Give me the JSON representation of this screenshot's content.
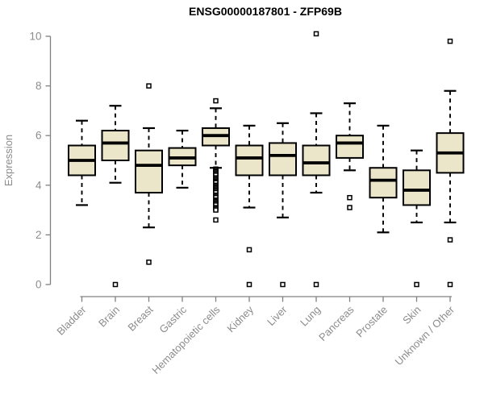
{
  "title": "ENSG00000187801 - ZFP69B",
  "chart_data": {
    "type": "boxplot",
    "title": "ENSG00000187801 - ZFP69B",
    "xlabel": "",
    "ylabel": "Expression",
    "ylim": [
      0,
      10
    ],
    "yticks": [
      0,
      2,
      4,
      6,
      8,
      10
    ],
    "grid": false,
    "legend": null,
    "colors": {
      "box_fill": "#EBE6CA",
      "box_stroke": "#000000",
      "median_stroke": "#000000",
      "whisker_stroke": "#000000",
      "outlier_stroke": "#000000",
      "axis_line": "#808080",
      "axis_text": "#8c8c8c",
      "title_text": "#000000",
      "background": "#ffffff"
    },
    "categories": [
      "Bladder",
      "Brain",
      "Breast",
      "Gastric",
      "Hematopoietic cells",
      "Kidney",
      "Liver",
      "Lung",
      "Pancreas",
      "Prostate",
      "Skin",
      "Unknown / Other"
    ],
    "series": [
      {
        "category": "Bladder",
        "whisker_low": 3.2,
        "q1": 4.4,
        "median": 5.0,
        "q3": 5.6,
        "whisker_high": 6.6,
        "outliers": []
      },
      {
        "category": "Brain",
        "whisker_low": 4.1,
        "q1": 5.0,
        "median": 5.7,
        "q3": 6.2,
        "whisker_high": 7.2,
        "outliers": [
          0
        ]
      },
      {
        "category": "Breast",
        "whisker_low": 2.3,
        "q1": 3.7,
        "median": 4.8,
        "q3": 5.4,
        "whisker_high": 6.3,
        "outliers": [
          8.0,
          0.9
        ]
      },
      {
        "category": "Gastric",
        "whisker_low": 3.9,
        "q1": 4.8,
        "median": 5.1,
        "q3": 5.5,
        "whisker_high": 6.2,
        "outliers": []
      },
      {
        "category": "Hematopoietic cells",
        "whisker_low": 4.7,
        "q1": 5.6,
        "median": 6.0,
        "q3": 6.3,
        "whisker_high": 7.1,
        "outliers": [
          7.4,
          4.65,
          4.6,
          4.55,
          4.5,
          4.45,
          4.4,
          4.3,
          4.25,
          4.2,
          4.15,
          4.1,
          4.0,
          3.95,
          3.9,
          3.85,
          3.8,
          3.75,
          3.7,
          3.6,
          3.55,
          3.5,
          3.4,
          3.35,
          3.3,
          3.25,
          3.2,
          3.1,
          3.05,
          3.0,
          2.6
        ]
      },
      {
        "category": "Kidney",
        "whisker_low": 3.1,
        "q1": 4.4,
        "median": 5.1,
        "q3": 5.6,
        "whisker_high": 6.4,
        "outliers": [
          1.4,
          0
        ]
      },
      {
        "category": "Liver",
        "whisker_low": 2.7,
        "q1": 4.4,
        "median": 5.2,
        "q3": 5.7,
        "whisker_high": 6.5,
        "outliers": [
          0
        ]
      },
      {
        "category": "Lung",
        "whisker_low": 3.7,
        "q1": 4.4,
        "median": 4.9,
        "q3": 5.6,
        "whisker_high": 6.9,
        "outliers": [
          10.1,
          0
        ]
      },
      {
        "category": "Pancreas",
        "whisker_low": 4.6,
        "q1": 5.1,
        "median": 5.7,
        "q3": 6.0,
        "whisker_high": 7.3,
        "outliers": [
          3.5,
          3.1
        ]
      },
      {
        "category": "Prostate",
        "whisker_low": 2.1,
        "q1": 3.5,
        "median": 4.2,
        "q3": 4.7,
        "whisker_high": 6.4,
        "outliers": []
      },
      {
        "category": "Skin",
        "whisker_low": 2.5,
        "q1": 3.2,
        "median": 3.8,
        "q3": 4.6,
        "whisker_high": 5.4,
        "outliers": [
          0
        ]
      },
      {
        "category": "Unknown / Other",
        "whisker_low": 2.5,
        "q1": 4.5,
        "median": 5.3,
        "q3": 6.1,
        "whisker_high": 7.8,
        "outliers": [
          9.8,
          1.8,
          0
        ]
      }
    ]
  }
}
